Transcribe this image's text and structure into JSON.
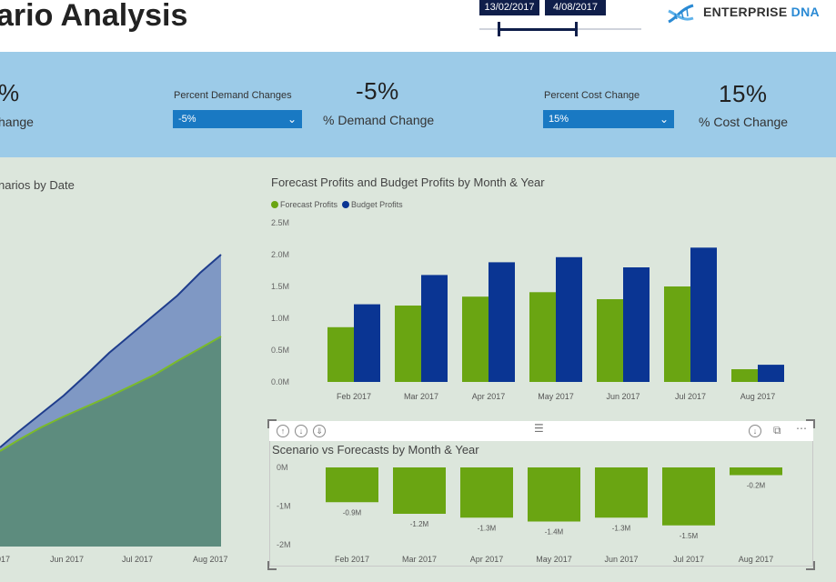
{
  "header": {
    "title": "ario Analysis",
    "date_start": "13/02/2017",
    "date_end": "4/08/2017",
    "logo_enterprise": "ENTERPRISE",
    "logo_dna": "DNA"
  },
  "kpis": {
    "left_big": "%",
    "left_label": "hange",
    "demand": {
      "slicer_title": "Percent Demand Changes",
      "selected": "-5%",
      "big_value": "-5%",
      "label": "% Demand Change"
    },
    "cost": {
      "slicer_title": "Percent Cost Change",
      "selected": "15%",
      "big_value": "15%",
      "label": "% Cost Change"
    }
  },
  "area_chart": {
    "title": "narios by Date",
    "x_labels": [
      "017",
      "Jun 2017",
      "Jul 2017",
      "Aug 2017"
    ]
  },
  "chart_data": [
    {
      "type": "bar",
      "title": "Forecast Profits and Budget Profits by Month & Year",
      "categories": [
        "Feb 2017",
        "Mar 2017",
        "Apr 2017",
        "May 2017",
        "Jun 2017",
        "Jul 2017",
        "Aug 2017"
      ],
      "series": [
        {
          "name": "Forecast Profits",
          "color": "#6aa512",
          "values": [
            0.86,
            1.2,
            1.34,
            1.41,
            1.3,
            1.5,
            0.2
          ]
        },
        {
          "name": "Budget Profits",
          "color": "#0a3593",
          "values": [
            1.22,
            1.68,
            1.88,
            1.96,
            1.8,
            2.11,
            0.27
          ]
        }
      ],
      "y_unit": "M",
      "y_ticks": [
        "0.0M",
        "0.5M",
        "1.0M",
        "1.5M",
        "2.0M",
        "2.5M"
      ],
      "ylim": [
        0,
        2.5
      ]
    },
    {
      "type": "bar",
      "title": "Scenario vs Forecasts by Month & Year",
      "categories": [
        "Feb 2017",
        "Mar 2017",
        "Apr 2017",
        "May 2017",
        "Jun 2017",
        "Jul 2017",
        "Aug 2017"
      ],
      "series": [
        {
          "name": "Scenario vs Forecasts",
          "color": "#6aa512",
          "values": [
            -0.9,
            -1.2,
            -1.3,
            -1.4,
            -1.3,
            -1.5,
            -0.2
          ]
        }
      ],
      "data_labels": [
        "-0.9M",
        "-1.2M",
        "-1.3M",
        "-1.4M",
        "-1.3M",
        "-1.5M",
        "-0.2M"
      ],
      "y_ticks": [
        "0M",
        "-1M",
        "-2M"
      ],
      "ylim": [
        -2,
        0
      ]
    }
  ]
}
